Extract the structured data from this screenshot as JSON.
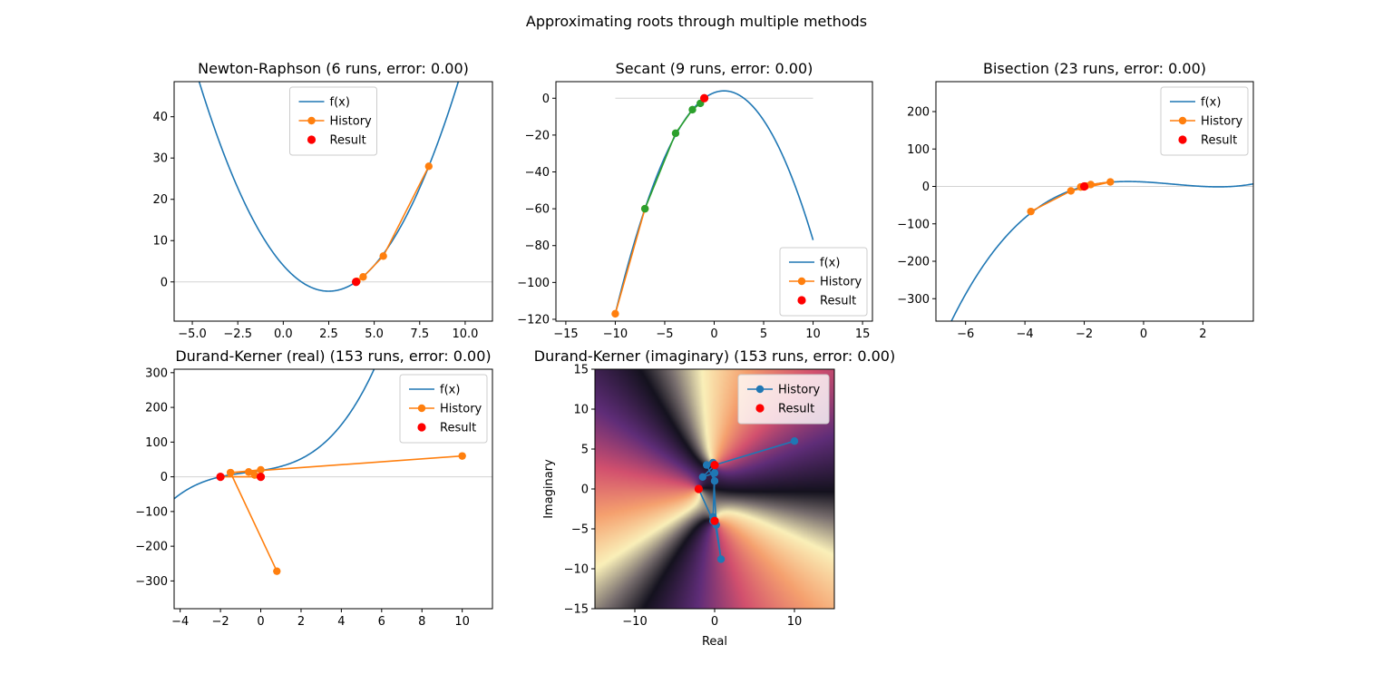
{
  "figure": {
    "suptitle": "Approximating roots through multiple methods"
  },
  "colors": {
    "blue": "#1f77b4",
    "orange": "#ff7f0e",
    "green": "#2ca02c",
    "red": "#ff0000",
    "zero_line": "#d3d3d3"
  },
  "chart_data": [
    {
      "id": "newton",
      "type": "line",
      "title": "Newton-Raphson (6 runs, error: 0.00)",
      "xlim": [
        -6.0,
        11.5
      ],
      "ylim": [
        -9.5,
        48.5
      ],
      "xticks": [
        -5,
        -2.5,
        0,
        2.5,
        5,
        7.5,
        10
      ],
      "xtick_labels": [
        "−5.0",
        "−2.5",
        "0.0",
        "2.5",
        "5.0",
        "7.5",
        "10.0"
      ],
      "yticks": [
        0,
        10,
        20,
        30,
        40
      ],
      "ytick_labels": [
        "0",
        "10",
        "20",
        "30",
        "40"
      ],
      "zero_line": true,
      "legend": {
        "position": "upper-center",
        "entries": [
          "f(x)",
          "History",
          "Result"
        ]
      },
      "function": {
        "name": "f(x)",
        "formula": "x^2 - 5x + 4",
        "x_range": [
          -6.0,
          11.5
        ]
      },
      "history": {
        "name": "History",
        "x": [
          8.0,
          5.5,
          4.39,
          4.05,
          4.0,
          4.0
        ],
        "y": [
          28.0,
          6.25,
          1.21,
          0.15,
          0.0,
          0.0
        ]
      },
      "result": {
        "name": "Result",
        "x": 4.0,
        "y": 0.0
      }
    },
    {
      "id": "secant",
      "type": "line",
      "title": "Secant (9 runs, error: 0.00)",
      "xlim": [
        -16.0,
        16.0
      ],
      "ylim": [
        -121.0,
        9.0
      ],
      "xticks": [
        -15,
        -10,
        -5,
        0,
        5,
        10,
        15
      ],
      "xtick_labels": [
        "−15",
        "−10",
        "−5",
        "0",
        "5",
        "10",
        "15"
      ],
      "yticks": [
        -120,
        -100,
        -80,
        -60,
        -40,
        -20,
        0
      ],
      "ytick_labels": [
        "−120",
        "−100",
        "−80",
        "−60",
        "−40",
        "−20",
        "0"
      ],
      "zero_line": true,
      "legend": {
        "position": "lower-right",
        "entries": [
          "f(x)",
          "History",
          "Result"
        ]
      },
      "function": {
        "name": "f(x)",
        "formula": "-x^2 + 2x + 3",
        "x_range": [
          -10,
          10
        ]
      },
      "history": {
        "name": "History",
        "x": [
          -10.0,
          -7.0
        ],
        "y": [
          -117.0,
          -60.0
        ]
      },
      "iterations": {
        "x": [
          -7.0,
          -3.9,
          -2.2,
          -1.4,
          -1.0
        ],
        "y": [
          -60.0,
          -19.0,
          -6.2,
          -2.8,
          0.0
        ]
      },
      "result": {
        "name": "Result",
        "x": -1.0,
        "y": 0.0
      }
    },
    {
      "id": "bisection",
      "type": "line",
      "title": "Bisection (23 runs, error: 0.00)",
      "xlim": [
        -7.0,
        3.7
      ],
      "ylim": [
        -360.0,
        280.0
      ],
      "xticks": [
        -6,
        -4,
        -2,
        0,
        2
      ],
      "xtick_labels": [
        "−6",
        "−4",
        "−2",
        "0",
        "2"
      ],
      "yticks": [
        -300,
        -200,
        -100,
        0,
        100,
        200
      ],
      "ytick_labels": [
        "−300",
        "−200",
        "−100",
        "0",
        "100",
        "200"
      ],
      "zero_line": true,
      "legend": {
        "position": "upper-right",
        "entries": [
          "f(x)",
          "History",
          "Result"
        ]
      },
      "function": {
        "name": "f(x)",
        "formula": "x^3 - 3x^2 - 4x + 12",
        "x_range": [
          -7.0,
          3.7
        ]
      },
      "history": {
        "name": "History",
        "x": [
          -3.8,
          -2.45,
          -1.12,
          -1.78,
          -2.12,
          -1.95,
          -2.03,
          -2.0
        ],
        "y": [
          -67.0,
          -12.0,
          12.0,
          5.0,
          -1.5,
          1.0,
          -0.5,
          0.0
        ]
      },
      "result": {
        "name": "Result",
        "x": -2.0,
        "y": 0.0
      }
    },
    {
      "id": "dk_real",
      "type": "line",
      "title": "Durand-Kerner (real) (153 runs, error: 0.00)",
      "xlim": [
        -4.3,
        11.5
      ],
      "ylim": [
        -380.0,
        310.0
      ],
      "xticks": [
        -4,
        -2,
        0,
        2,
        4,
        6,
        8,
        10
      ],
      "xtick_labels": [
        "−4",
        "−2",
        "0",
        "2",
        "4",
        "6",
        "8",
        "10"
      ],
      "yticks": [
        -300,
        -200,
        -100,
        0,
        100,
        200,
        300
      ],
      "ytick_labels": [
        "−300",
        "−200",
        "−100",
        "0",
        "100",
        "200",
        "300"
      ],
      "zero_line": true,
      "legend": {
        "position": "upper-right",
        "entries": [
          "f(x)",
          "History",
          "Result"
        ]
      },
      "function": {
        "name": "f(x)",
        "formula": "x^3 + 2x^2 + 9x + 18",
        "x_range": [
          -4.3,
          11.5
        ]
      },
      "history": {
        "name": "History",
        "x": [
          10.0,
          -1.5,
          0.8,
          -1.5,
          0.0,
          -0.6,
          -0.3,
          0.0,
          -2.0
        ],
        "y": [
          60.0,
          12.0,
          -272.0,
          12.0,
          20.0,
          14.0,
          5.0,
          0.0,
          0.0
        ]
      },
      "result": {
        "name": "Result",
        "x": [
          -2.0,
          0.0
        ],
        "y": [
          0.0,
          0.0
        ]
      }
    },
    {
      "id": "dk_imag",
      "type": "heatmap",
      "title": "Durand-Kerner (imaginary) (153 runs, error: 0.00)",
      "xlabel": "Real",
      "ylabel": "Imaginary",
      "xlim": [
        -15.0,
        15.0
      ],
      "ylim": [
        -15.0,
        15.0
      ],
      "xticks": [
        -10,
        0,
        10
      ],
      "xtick_labels": [
        "−10",
        "0",
        "10"
      ],
      "yticks": [
        -15,
        -10,
        -5,
        0,
        5,
        10,
        15
      ],
      "ytick_labels": [
        "−15",
        "−10",
        "−5",
        "0",
        "5",
        "10",
        "15"
      ],
      "background": "phase of f(z) over the complex plane",
      "roots": {
        "x": [
          -2.0,
          0.0,
          0.0
        ],
        "y": [
          0.0,
          3.0,
          -4.0
        ]
      },
      "legend": {
        "position": "upper-right",
        "entries": [
          "History",
          "Result"
        ]
      },
      "history": {
        "name": "History",
        "x": [
          10.0,
          0.0,
          -1.5,
          0.0,
          -0.2,
          0.2,
          0.8,
          0.0,
          -0.2,
          0.0,
          -1.0,
          0.0,
          -0.2,
          -2.0
        ],
        "y": [
          6.0,
          3.0,
          1.5,
          2.0,
          3.3,
          -4.5,
          -8.8,
          -4.0,
          -3.5,
          1.0,
          3.0,
          3.0,
          -4.0,
          0.0
        ]
      },
      "result": {
        "name": "Result",
        "x": [
          -2.0,
          0.0,
          0.0
        ],
        "y": [
          0.0,
          3.0,
          -4.0
        ]
      }
    }
  ]
}
